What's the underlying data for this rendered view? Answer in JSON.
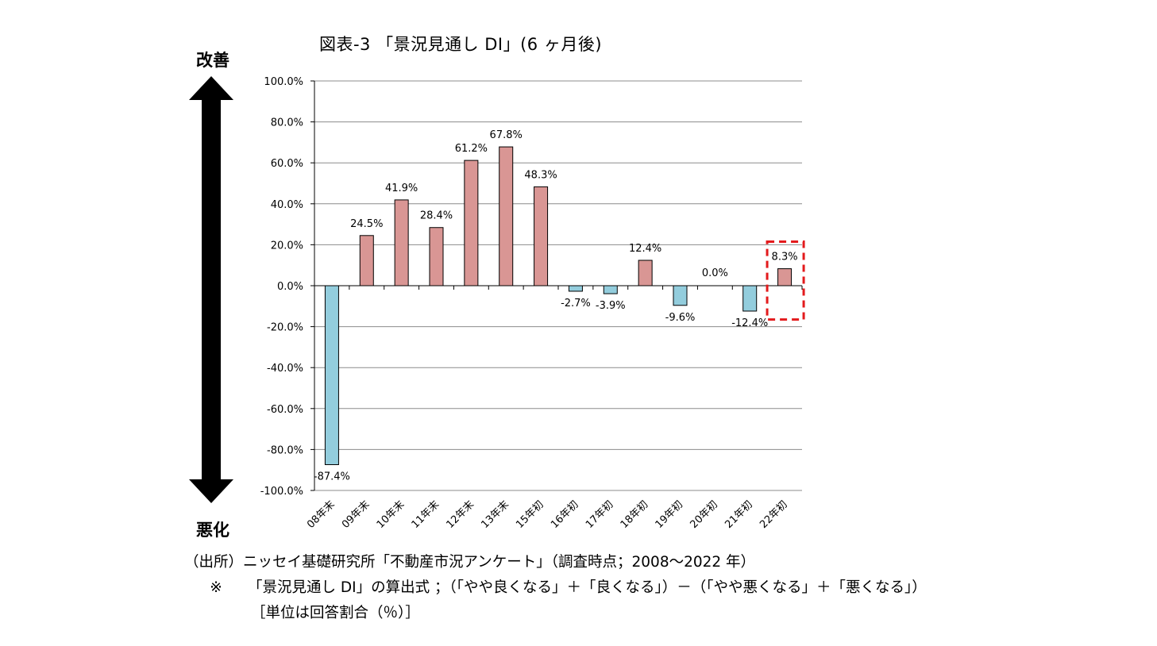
{
  "chart_data": {
    "type": "bar",
    "title": "図表-3 「景況見通し DI」(6 ヶ月後)",
    "categories": [
      "08年末",
      "09年末",
      "10年末",
      "11年末",
      "12年末",
      "13年末",
      "15年初",
      "16年初",
      "17年初",
      "18年初",
      "19年初",
      "20年初",
      "21年初",
      "22年初"
    ],
    "values": [
      -87.4,
      24.5,
      41.9,
      28.4,
      61.2,
      67.8,
      48.3,
      -2.7,
      -3.9,
      12.4,
      -9.6,
      0.0,
      -12.4,
      8.3
    ],
    "value_labels": [
      "-87.4%",
      "24.5%",
      "41.9%",
      "28.4%",
      "61.2%",
      "67.8%",
      "48.3%",
      "-2.7%",
      "-3.9%",
      "12.4%",
      "-9.6%",
      "0.0%",
      "-12.4%",
      "8.3%"
    ],
    "ylim": [
      -100,
      100
    ],
    "yticks": [
      100,
      80,
      60,
      40,
      20,
      0,
      -20,
      -40,
      -60,
      -80,
      -100
    ],
    "ytick_labels": [
      "100.0%",
      "80.0%",
      "60.0%",
      "40.0%",
      "20.0%",
      "0.0%",
      "-20.0%",
      "-40.0%",
      "-60.0%",
      "-80.0%",
      "-100.0%"
    ],
    "grid": true,
    "colors": {
      "positive": "#d99694",
      "negative": "#93cddd",
      "highlight": "#e31a1c",
      "grid": "#8c8c8c"
    },
    "highlighted_category": "22年初",
    "arrow_top_label": "改善",
    "arrow_bottom_label": "悪化"
  },
  "footer": {
    "source": "（出所）ニッセイ基礎研究所「不動産市況アンケート」（調査時点；2008～2022 年）",
    "formula_mark": "※",
    "formula": "「景況見通し DI」の算出式 ；（「やや良くなる」＋「良くなる」）－（「やや悪くなる」＋「悪くなる」）",
    "unit": "［単位は回答割合（％）］"
  }
}
